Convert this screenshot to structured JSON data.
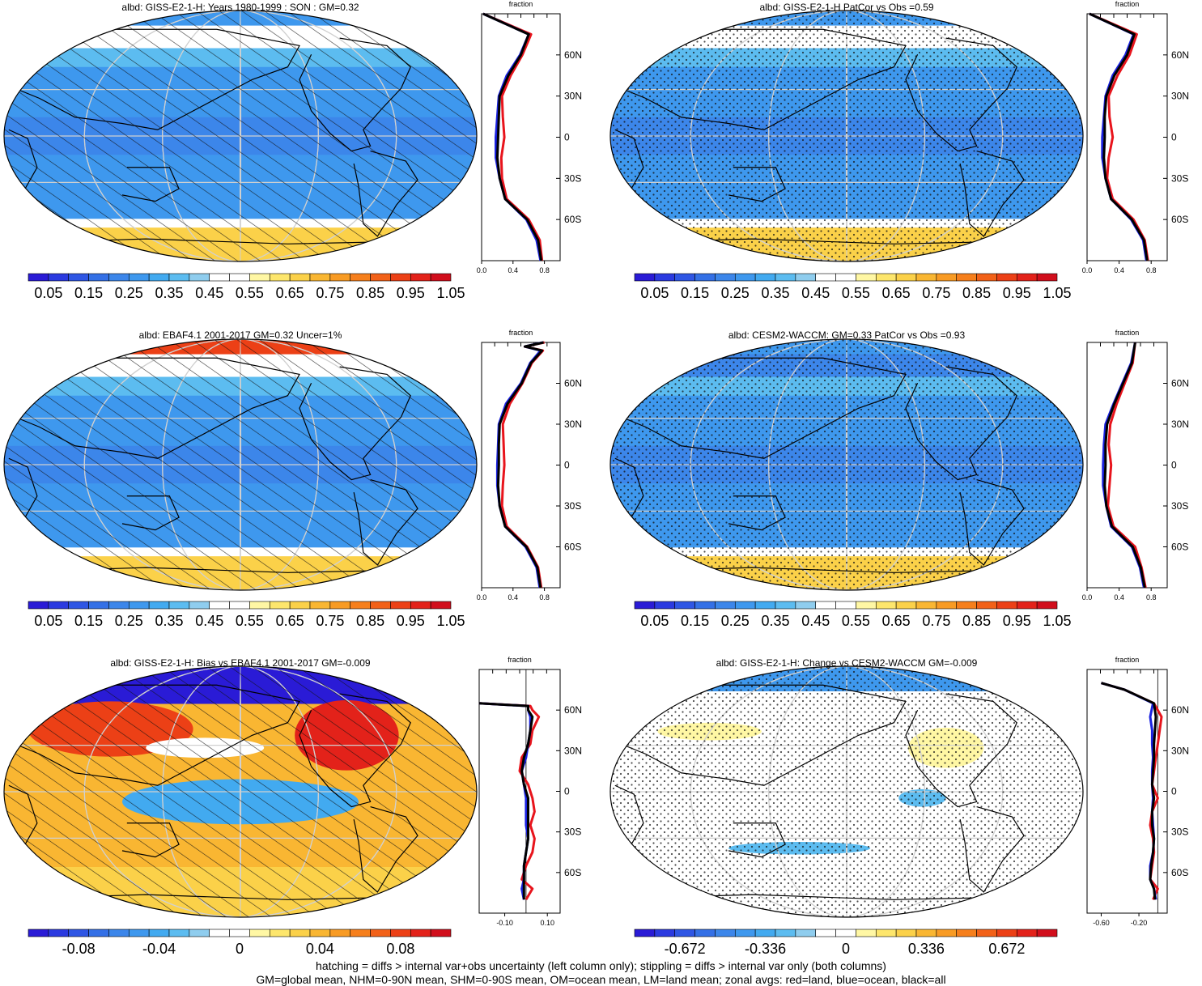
{
  "panels": [
    {
      "title": "albd: GISS-E2-1-H: Years 1980-1999 : SON : GM=0.32",
      "colorbar": [
        "0.05",
        "0.15",
        "0.25",
        "0.35",
        "0.45",
        "0.55",
        "0.65",
        "0.75",
        "0.85",
        "0.95",
        "1.05"
      ],
      "zonal_ticks": [
        "0.0",
        "0.4",
        "0.8"
      ]
    },
    {
      "title": "albd: GISS-E2-1-H PatCor vs Obs =0.59",
      "colorbar": [
        "0.05",
        "0.15",
        "0.25",
        "0.35",
        "0.45",
        "0.55",
        "0.65",
        "0.75",
        "0.85",
        "0.95",
        "1.05"
      ],
      "zonal_ticks": [
        "0.0",
        "0.4",
        "0.8"
      ]
    },
    {
      "title": "albd: EBAF4.1 2001-2017 GM=0.32 Uncer=1%",
      "colorbar": [
        "0.05",
        "0.15",
        "0.25",
        "0.35",
        "0.45",
        "0.55",
        "0.65",
        "0.75",
        "0.85",
        "0.95",
        "1.05"
      ],
      "zonal_ticks": [
        "0.0",
        "0.4",
        "0.8"
      ]
    },
    {
      "title": "albd: CESM2-WACCM: GM=0.33 PatCor vs Obs =0.93",
      "colorbar": [
        "0.05",
        "0.15",
        "0.25",
        "0.35",
        "0.45",
        "0.55",
        "0.65",
        "0.75",
        "0.85",
        "0.95",
        "1.05"
      ],
      "zonal_ticks": [
        "0.0",
        "0.4",
        "0.8"
      ]
    },
    {
      "title": "albd: GISS-E2-1-H: Bias vs EBAF4.1 2001-2017  GM=-0.009",
      "colorbar": [
        "-0.08",
        "-0.04",
        "0",
        "0.04",
        "0.08"
      ],
      "zonal_ticks": [
        "-0.10",
        "0.10"
      ]
    },
    {
      "title": "albd: GISS-E2-1-H: Change vs CESM2-WACCM GM=-0.009",
      "colorbar": [
        "-0.672",
        "-0.336",
        "0",
        "0.336",
        "0.672"
      ],
      "zonal_ticks": [
        "-0.60",
        "-0.20"
      ]
    }
  ],
  "zonal_title": "fraction",
  "lat_labels": [
    "60N",
    "30N",
    "0",
    "30S",
    "60S"
  ],
  "footer": [
    "hatching = diffs > internal var+obs uncertainty (left column only); stippling = diffs > internal var only (both columns)",
    "GM=global mean, NHM=0-90N mean, SHM=0-90S mean, OM=ocean mean, LM=land mean; zonal avgs: red=land, blue=ocean, black=all"
  ],
  "colors": {
    "land": "#e8141c",
    "ocean": "#1a22e0",
    "all": "#000000",
    "scale": [
      "#2a1bd6",
      "#2b3ae0",
      "#2f56e4",
      "#3470e6",
      "#3c86ea",
      "#3e98ee",
      "#42aaf0",
      "#5cbcf0",
      "#8fcdee",
      "#ffffff",
      "#ffffff",
      "#fff7a4",
      "#fde66c",
      "#fbd149",
      "#f9b632",
      "#f89b24",
      "#f67f1c",
      "#f26118",
      "#ec4016",
      "#e3221a",
      "#d10e1c"
    ]
  },
  "chart_data": [
    {
      "type": "heatmap",
      "title": "albd: GISS-E2-1-H: Years 1980-1999 : SON : GM=0.32",
      "zonal_mean": {
        "lat": [
          -90,
          -75,
          -60,
          -45,
          -30,
          -15,
          0,
          15,
          30,
          45,
          60,
          75,
          90
        ],
        "land": [
          0.77,
          0.74,
          0.6,
          0.32,
          0.26,
          0.25,
          0.29,
          0.27,
          0.26,
          0.37,
          0.52,
          0.63,
          0.02
        ],
        "ocean": [
          0.75,
          0.7,
          0.57,
          0.3,
          0.23,
          0.18,
          0.18,
          0.2,
          0.22,
          0.32,
          0.49,
          0.6,
          0.02
        ],
        "all": [
          0.76,
          0.72,
          0.58,
          0.3,
          0.23,
          0.2,
          0.21,
          0.22,
          0.23,
          0.34,
          0.5,
          0.6,
          0.02
        ]
      },
      "xlim": [
        0,
        1
      ]
    },
    {
      "type": "heatmap",
      "title": "albd: GISS-E2-1-H PatCor vs Obs =0.59",
      "zonal_mean": {
        "lat": [
          -90,
          -75,
          -60,
          -45,
          -30,
          -15,
          0,
          15,
          30,
          45,
          60,
          75,
          90
        ],
        "land": [
          0.76,
          0.72,
          0.58,
          0.32,
          0.25,
          0.27,
          0.32,
          0.28,
          0.27,
          0.38,
          0.53,
          0.62,
          0.03
        ],
        "ocean": [
          0.74,
          0.7,
          0.55,
          0.3,
          0.23,
          0.19,
          0.19,
          0.21,
          0.23,
          0.32,
          0.48,
          0.58,
          0.03
        ],
        "all": [
          0.75,
          0.71,
          0.56,
          0.3,
          0.23,
          0.21,
          0.22,
          0.22,
          0.24,
          0.34,
          0.5,
          0.59,
          0.03
        ]
      },
      "xlim": [
        0,
        1
      ]
    },
    {
      "type": "heatmap",
      "title": "albd: EBAF4.1 2001-2017 GM=0.32 Uncer=1%",
      "zonal_mean": {
        "lat": [
          -90,
          -75,
          -60,
          -45,
          -30,
          -15,
          0,
          15,
          30,
          45,
          60,
          75,
          84,
          87,
          90
        ],
        "land": [
          0.76,
          0.72,
          0.58,
          0.32,
          0.26,
          0.27,
          0.29,
          0.28,
          0.27,
          0.36,
          0.52,
          0.64,
          0.78,
          0.55,
          0.8
        ],
        "ocean": [
          0.74,
          0.7,
          0.56,
          0.3,
          0.23,
          0.2,
          0.2,
          0.21,
          0.22,
          0.31,
          0.5,
          0.62,
          0.75,
          0.55,
          0.78
        ],
        "all": [
          0.75,
          0.71,
          0.57,
          0.3,
          0.23,
          0.21,
          0.22,
          0.22,
          0.23,
          0.33,
          0.51,
          0.63,
          0.77,
          0.55,
          0.79
        ]
      },
      "xlim": [
        0,
        1
      ]
    },
    {
      "type": "heatmap",
      "title": "albd: CESM2-WACCM: GM=0.33 PatCor vs Obs =0.93",
      "zonal_mean": {
        "lat": [
          -90,
          -75,
          -60,
          -45,
          -30,
          -15,
          0,
          15,
          30,
          45,
          60,
          75,
          90
        ],
        "land": [
          0.73,
          0.68,
          0.6,
          0.33,
          0.26,
          0.28,
          0.3,
          0.27,
          0.29,
          0.37,
          0.47,
          0.57,
          0.6
        ],
        "ocean": [
          0.71,
          0.66,
          0.56,
          0.3,
          0.24,
          0.2,
          0.2,
          0.21,
          0.23,
          0.33,
          0.44,
          0.55,
          0.6
        ],
        "all": [
          0.72,
          0.67,
          0.57,
          0.31,
          0.24,
          0.22,
          0.23,
          0.23,
          0.25,
          0.34,
          0.45,
          0.56,
          0.6
        ]
      },
      "xlim": [
        0,
        1
      ]
    },
    {
      "type": "heatmap",
      "title": "albd: GISS-E2-1-H: Bias vs EBAF4.1 2001-2017  GM=-0.009",
      "zonal_mean": {
        "lat": [
          -80,
          -72,
          -65,
          -55,
          -45,
          -35,
          -25,
          -15,
          -5,
          5,
          15,
          25,
          35,
          45,
          55,
          60,
          63,
          65
        ],
        "land": [
          0.0,
          0.03,
          -0.02,
          0.0,
          0.03,
          0.04,
          0.02,
          0.04,
          0.03,
          0.01,
          -0.03,
          -0.02,
          0.02,
          0.03,
          0.06,
          0.03,
          0.02,
          -0.22
        ],
        "ocean": [
          -0.01,
          -0.02,
          -0.01,
          -0.01,
          0.0,
          0.01,
          0.0,
          0.0,
          0.0,
          -0.01,
          -0.02,
          0.0,
          0.01,
          0.02,
          0.02,
          0.01,
          0.01,
          -0.22
        ],
        "all": [
          -0.01,
          -0.01,
          -0.01,
          -0.01,
          0.0,
          0.01,
          0.01,
          0.01,
          0.01,
          -0.01,
          -0.02,
          -0.01,
          0.01,
          0.02,
          0.03,
          0.01,
          0.01,
          -0.22
        ]
      },
      "xlim": [
        -0.22,
        0.16
      ]
    },
    {
      "type": "heatmap",
      "title": "albd: GISS-E2-1-H: Change vs CESM2-WACCM GM=-0.009",
      "zonal_mean": {
        "lat": [
          -80,
          -72,
          -65,
          -55,
          -45,
          -35,
          -25,
          -15,
          -5,
          5,
          15,
          25,
          35,
          45,
          55,
          65,
          75,
          80
        ],
        "land": [
          -0.05,
          0.0,
          -0.08,
          -0.06,
          -0.04,
          -0.05,
          -0.08,
          -0.06,
          0.0,
          -0.06,
          -0.04,
          -0.02,
          0.0,
          0.02,
          0.04,
          -0.04,
          -0.35,
          -0.6
        ],
        "ocean": [
          -0.02,
          -0.04,
          -0.08,
          -0.08,
          -0.05,
          -0.04,
          -0.05,
          -0.06,
          -0.05,
          -0.06,
          -0.06,
          -0.05,
          -0.06,
          -0.06,
          -0.08,
          -0.05,
          -0.35,
          -0.6
        ],
        "all": [
          -0.03,
          -0.04,
          -0.08,
          -0.07,
          -0.05,
          -0.04,
          -0.06,
          -0.06,
          -0.04,
          -0.06,
          -0.05,
          -0.04,
          -0.04,
          -0.03,
          -0.02,
          -0.04,
          -0.35,
          -0.6
        ]
      },
      "xlim": [
        -0.75,
        0.1
      ]
    }
  ]
}
